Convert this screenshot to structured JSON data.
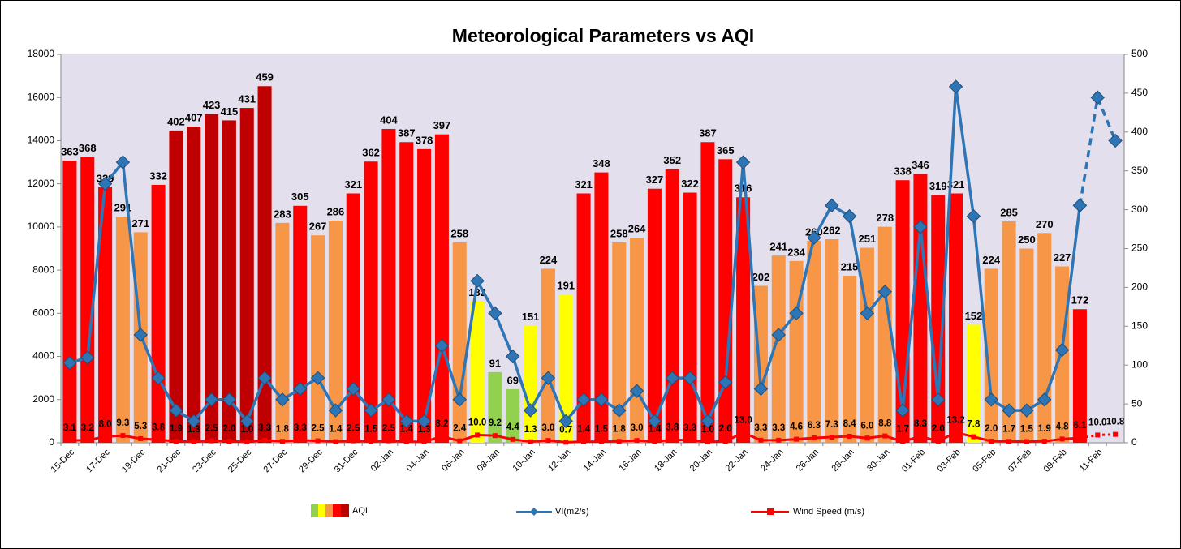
{
  "chart_data": {
    "type": "combo",
    "title": "Meteorological Parameters vs AQI",
    "categories": [
      "15-Dec",
      null,
      "17-Dec",
      null,
      "19-Dec",
      null,
      "21-Dec",
      null,
      "23-Dec",
      null,
      "25-Dec",
      null,
      "27-Dec",
      null,
      "29-Dec",
      null,
      "31-Dec",
      null,
      "02-Jan",
      null,
      "04-Jan",
      null,
      "06-Jan",
      null,
      "08-Jan",
      null,
      "10-Jan",
      null,
      "12-Jan",
      null,
      "14-Jan",
      null,
      "16-Jan",
      null,
      "18-Jan",
      null,
      "20-Jan",
      null,
      "22-Jan",
      null,
      "24-Jan",
      null,
      "26-Jan",
      null,
      "28-Jan",
      null,
      "30-Jan",
      null,
      "01-Feb",
      null,
      "03-Feb",
      null,
      "05-Feb",
      null,
      "07-Feb",
      null,
      "09-Feb",
      null,
      "11-Feb",
      null
    ],
    "ylim": [
      0,
      18000
    ],
    "yticks": [
      0,
      2000,
      4000,
      6000,
      8000,
      10000,
      12000,
      14000,
      16000,
      18000
    ],
    "y2lim": [
      0,
      500
    ],
    "y2ticks": [
      0,
      50,
      100,
      150,
      200,
      250,
      300,
      350,
      400,
      450,
      500
    ],
    "grid": false,
    "legend": "bottom",
    "background": "#e4dfec",
    "series": [
      {
        "name": "AQI",
        "type": "bar",
        "axis": "y2",
        "values": [
          363,
          368,
          329,
          291,
          271,
          332,
          402,
          407,
          423,
          415,
          431,
          459,
          283,
          305,
          267,
          286,
          321,
          362,
          404,
          387,
          378,
          397,
          258,
          182,
          91,
          69,
          151,
          224,
          191,
          321,
          348,
          258,
          264,
          327,
          352,
          322,
          387,
          365,
          316,
          202,
          241,
          234,
          260,
          262,
          215,
          251,
          278,
          338,
          346,
          319,
          321,
          152,
          224,
          285,
          250,
          270,
          227,
          172,
          null,
          null
        ],
        "colors": [
          "#ff0000",
          "#ff0000",
          "#ff0000",
          "#f79646",
          "#f79646",
          "#ff0000",
          "#c00000",
          "#c00000",
          "#c00000",
          "#c00000",
          "#c00000",
          "#c00000",
          "#f79646",
          "#ff0000",
          "#f79646",
          "#f79646",
          "#ff0000",
          "#ff0000",
          "#ff0000",
          "#ff0000",
          "#ff0000",
          "#ff0000",
          "#f79646",
          "#ffff00",
          "#92d050",
          "#92d050",
          "#ffff00",
          "#f79646",
          "#ffff00",
          "#ff0000",
          "#ff0000",
          "#f79646",
          "#f79646",
          "#ff0000",
          "#ff0000",
          "#ff0000",
          "#ff0000",
          "#ff0000",
          "#ff0000",
          "#f79646",
          "#f79646",
          "#f79646",
          "#f79646",
          "#f79646",
          "#f79646",
          "#f79646",
          "#f79646",
          "#ff0000",
          "#ff0000",
          "#ff0000",
          "#ff0000",
          "#ffff00",
          "#f79646",
          "#f79646",
          "#f79646",
          "#f79646",
          "#f79646",
          "#ff0000",
          null,
          null
        ]
      },
      {
        "name": "VI(m2/s)",
        "type": "line",
        "axis": "y",
        "color": "#2e75b6",
        "marker": "diamond",
        "line_style": "solid",
        "values": [
          3700,
          3950,
          12000,
          13000,
          5000,
          3000,
          1500,
          1000,
          2000,
          2000,
          1000,
          3000,
          2000,
          2500,
          3000,
          1500,
          2500,
          1500,
          2000,
          1000,
          1000,
          4500,
          2000,
          7500,
          6000,
          4000,
          1500,
          3000,
          1000,
          2000,
          2000,
          1500,
          2400,
          1000,
          3000,
          3000,
          1000,
          2800,
          13000,
          2500,
          5000,
          6000,
          9500,
          11000,
          10500,
          6000,
          7000,
          1500,
          10000,
          2000,
          16500,
          10500,
          2000,
          1500,
          1500,
          2000,
          4300,
          11000,
          null,
          null
        ]
      },
      {
        "type": "line",
        "axis": "y",
        "color": "#2e75b6",
        "marker": "diamond",
        "line_style": "dashed",
        "values": [
          null,
          null,
          null,
          null,
          null,
          null,
          null,
          null,
          null,
          null,
          null,
          null,
          null,
          null,
          null,
          null,
          null,
          null,
          null,
          null,
          null,
          null,
          null,
          null,
          null,
          null,
          null,
          null,
          null,
          null,
          null,
          null,
          null,
          null,
          null,
          null,
          null,
          null,
          null,
          null,
          null,
          null,
          null,
          null,
          null,
          null,
          null,
          null,
          null,
          null,
          null,
          null,
          null,
          null,
          null,
          null,
          null,
          11000,
          16000,
          14000
        ]
      },
      {
        "name": "Wind Speed (m/s)",
        "type": "line",
        "axis": "y2",
        "color": "#ff0000",
        "marker": "square",
        "line_style": "solid",
        "values": [
          3.1,
          3.2,
          8.0,
          9.3,
          5.3,
          3.8,
          1.9,
          1.3,
          2.5,
          2.0,
          1.0,
          3.3,
          1.8,
          3.3,
          2.5,
          1.4,
          2.5,
          1.5,
          2.5,
          1.4,
          1.3,
          8.2,
          2.4,
          10.0,
          9.2,
          4.4,
          1.3,
          3.0,
          0.7,
          1.4,
          1.5,
          1.8,
          3.0,
          1.4,
          3.8,
          3.3,
          1.0,
          2.0,
          13.0,
          3.3,
          3.3,
          4.6,
          6.3,
          7.3,
          8.4,
          6.0,
          8.8,
          1.7,
          8.3,
          2.0,
          13.2,
          7.8,
          2.0,
          1.7,
          1.5,
          1.9,
          4.8,
          6.1,
          null,
          null
        ],
        "value_labels": [
          "3.1",
          "3.2",
          "8.0",
          "9.3",
          "5.3",
          "3.8",
          "1.9",
          "1.3",
          "2.5",
          "2.0",
          "1.0",
          "3.3",
          "1.8",
          "3.3",
          "2.5",
          "1.4",
          "2.5",
          "1.5",
          "2.5",
          "1.4",
          "1.3",
          "8.2",
          "2.4",
          "10.0",
          "9.2",
          "4.4",
          "1.3",
          "3.0",
          "0.7",
          "1.4",
          "1.5",
          "1.8",
          "3.0",
          "1.4",
          "3.8",
          "3.3",
          "1.0",
          "2.0",
          "13.0",
          "3.3",
          "3.3",
          "4.6",
          "6.3",
          "7.3",
          "8.4",
          "6.0",
          "8.8",
          "1.7",
          "8.3",
          "2.0",
          "13.2",
          "7.8",
          "2.0",
          "1.7",
          "1.5",
          "1.9",
          "4.8",
          "6.1",
          null,
          null
        ]
      },
      {
        "type": "line",
        "axis": "y2",
        "color": "#ff0000",
        "marker": "square",
        "line_style": "dotted",
        "values": [
          null,
          null,
          null,
          null,
          null,
          null,
          null,
          null,
          null,
          null,
          null,
          null,
          null,
          null,
          null,
          null,
          null,
          null,
          null,
          null,
          null,
          null,
          null,
          null,
          null,
          null,
          null,
          null,
          null,
          null,
          null,
          null,
          null,
          null,
          null,
          null,
          null,
          null,
          null,
          null,
          null,
          null,
          null,
          null,
          null,
          null,
          null,
          null,
          null,
          null,
          null,
          null,
          null,
          null,
          null,
          null,
          null,
          6.1,
          10.0,
          10.8
        ],
        "value_labels": [
          null,
          null,
          null,
          null,
          null,
          null,
          null,
          null,
          null,
          null,
          null,
          null,
          null,
          null,
          null,
          null,
          null,
          null,
          null,
          null,
          null,
          null,
          null,
          null,
          null,
          null,
          null,
          null,
          null,
          null,
          null,
          null,
          null,
          null,
          null,
          null,
          null,
          null,
          null,
          null,
          null,
          null,
          null,
          null,
          null,
          null,
          null,
          null,
          null,
          null,
          null,
          null,
          null,
          null,
          null,
          null,
          null,
          null,
          "10.0",
          "10.8"
        ]
      }
    ]
  }
}
